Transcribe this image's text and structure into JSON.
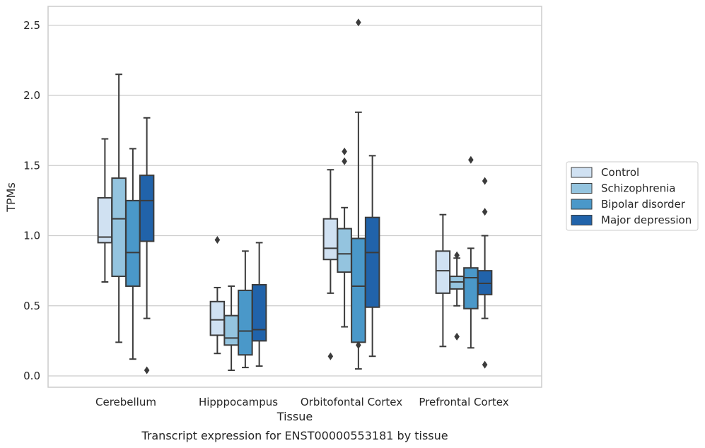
{
  "chart_data": {
    "type": "box",
    "caption": "Transcript expression for ENST00000553181 by tissue",
    "xlabel": "Tissue",
    "ylabel": "TPMs",
    "ylim": [
      -0.08,
      2.65
    ],
    "yticks": [
      0.0,
      0.5,
      1.0,
      1.5,
      2.0,
      2.5
    ],
    "ytick_labels": [
      "0.0",
      "0.5",
      "1.0",
      "1.5",
      "2.0",
      "2.5"
    ],
    "grid": "horizontal",
    "legend_position": "right",
    "categories": [
      "Cerebellum",
      "Hipppocampus",
      "Orbitofontal Cortex",
      "Prefrontal Cortex"
    ],
    "series": [
      {
        "name": "Control",
        "color": "#d0e1f2",
        "boxes": [
          {
            "whisker_low": 0.67,
            "q1": 0.95,
            "median": 0.99,
            "q3": 1.27,
            "whisker_high": 1.69,
            "outliers": []
          },
          {
            "whisker_low": 0.16,
            "q1": 0.29,
            "median": 0.4,
            "q3": 0.53,
            "whisker_high": 0.63,
            "outliers": [
              0.97
            ]
          },
          {
            "whisker_low": 0.59,
            "q1": 0.83,
            "median": 0.91,
            "q3": 1.12,
            "whisker_high": 1.47,
            "outliers": [
              0.14
            ]
          },
          {
            "whisker_low": 0.21,
            "q1": 0.59,
            "median": 0.75,
            "q3": 0.89,
            "whisker_high": 1.15,
            "outliers": []
          }
        ]
      },
      {
        "name": "Schizophrenia",
        "color": "#94c4df",
        "boxes": [
          {
            "whisker_low": 0.24,
            "q1": 0.71,
            "median": 1.12,
            "q3": 1.41,
            "whisker_high": 2.15,
            "outliers": []
          },
          {
            "whisker_low": 0.04,
            "q1": 0.22,
            "median": 0.27,
            "q3": 0.43,
            "whisker_high": 0.64,
            "outliers": []
          },
          {
            "whisker_low": 0.35,
            "q1": 0.74,
            "median": 0.87,
            "q3": 1.05,
            "whisker_high": 1.2,
            "outliers": [
              1.53,
              1.6
            ]
          },
          {
            "whisker_low": 0.5,
            "q1": 0.62,
            "median": 0.67,
            "q3": 0.71,
            "whisker_high": 0.84,
            "outliers": [
              0.86,
              0.28
            ]
          }
        ]
      },
      {
        "name": "Bipolar disorder",
        "color": "#4a98c9",
        "boxes": [
          {
            "whisker_low": 0.12,
            "q1": 0.64,
            "median": 0.88,
            "q3": 1.25,
            "whisker_high": 1.62,
            "outliers": []
          },
          {
            "whisker_low": 0.06,
            "q1": 0.15,
            "median": 0.32,
            "q3": 0.61,
            "whisker_high": 0.89,
            "outliers": []
          },
          {
            "whisker_low": 0.05,
            "q1": 0.24,
            "median": 0.64,
            "q3": 0.98,
            "whisker_high": 1.88,
            "outliers": [
              0.22,
              2.52
            ]
          },
          {
            "whisker_low": 0.2,
            "q1": 0.48,
            "median": 0.7,
            "q3": 0.77,
            "whisker_high": 0.91,
            "outliers": [
              1.54
            ]
          }
        ]
      },
      {
        "name": "Major depression",
        "color": "#2163aa",
        "boxes": [
          {
            "whisker_low": 0.41,
            "q1": 0.96,
            "median": 1.25,
            "q3": 1.43,
            "whisker_high": 1.84,
            "outliers": [
              0.04
            ]
          },
          {
            "whisker_low": 0.07,
            "q1": 0.25,
            "median": 0.33,
            "q3": 0.65,
            "whisker_high": 0.95,
            "outliers": []
          },
          {
            "whisker_low": 0.14,
            "q1": 0.49,
            "median": 0.88,
            "q3": 1.13,
            "whisker_high": 1.57,
            "outliers": []
          },
          {
            "whisker_low": 0.41,
            "q1": 0.58,
            "median": 0.66,
            "q3": 0.75,
            "whisker_high": 1.0,
            "outliers": [
              0.08,
              1.17,
              1.39
            ]
          }
        ]
      }
    ]
  }
}
